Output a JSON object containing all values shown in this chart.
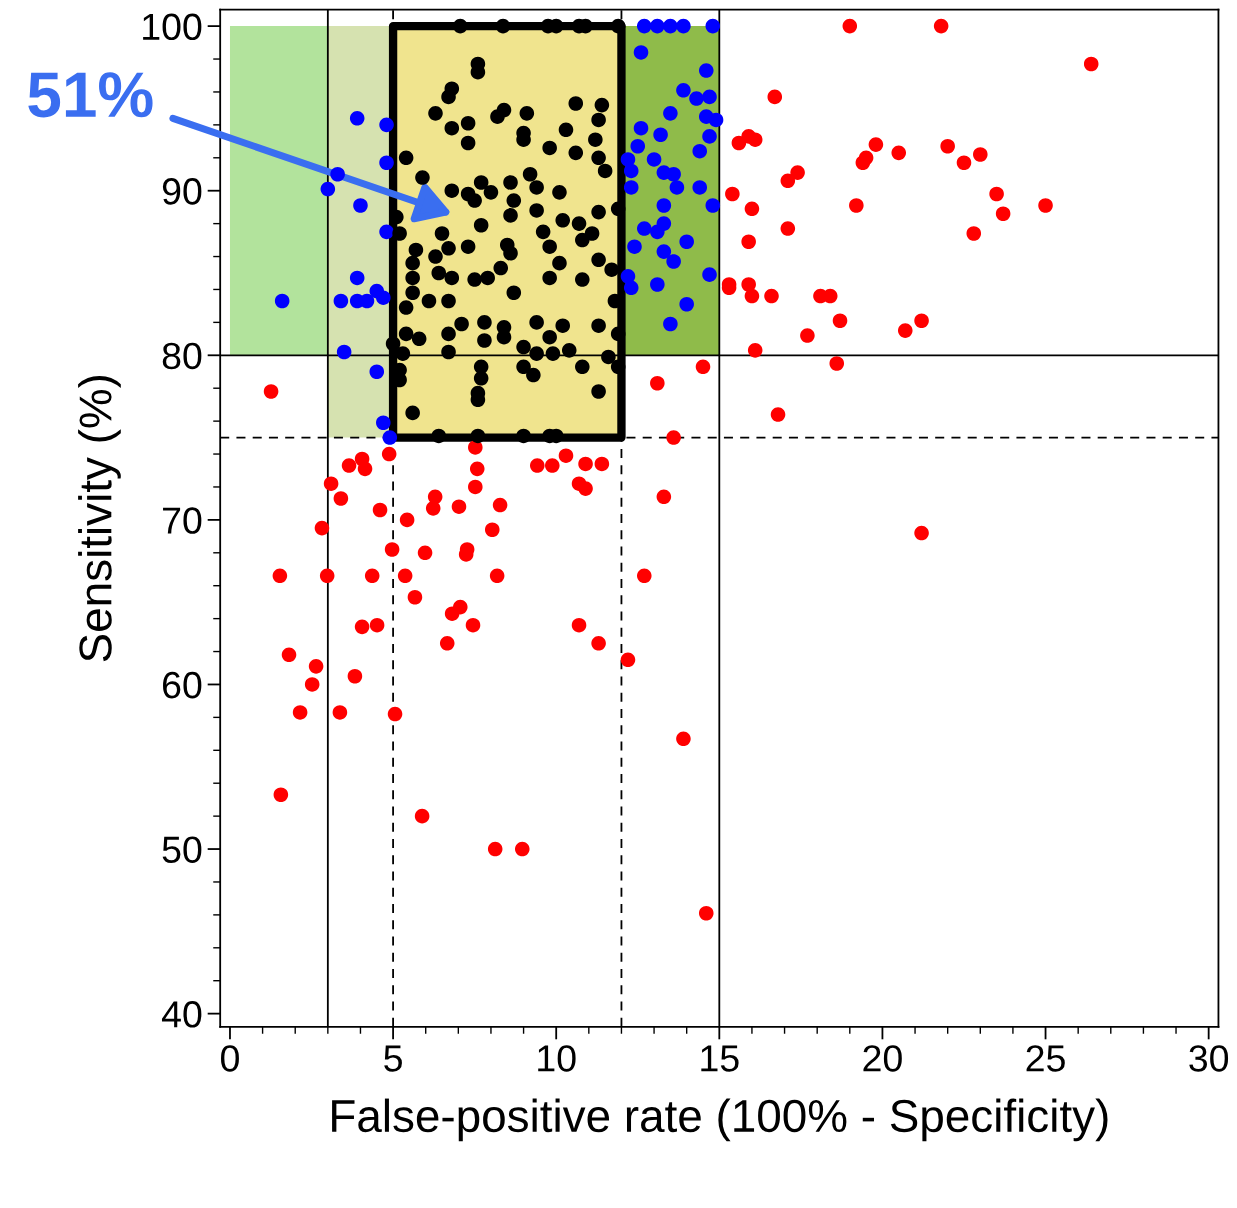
{
  "chart_data": {
    "type": "scatter",
    "xlabel": "False-positive rate (100% - Specificity)",
    "ylabel": "Sensitivity (%)",
    "xlim": [
      -0.3,
      30.3
    ],
    "ylim": [
      39.2,
      101
    ],
    "xticks": [
      0,
      5,
      10,
      15,
      20,
      25,
      30
    ],
    "yticks": [
      40,
      50,
      60,
      70,
      80,
      90,
      100
    ],
    "grid": false,
    "legend": false,
    "ref_lines": [
      {
        "axis": "x",
        "value": 3,
        "line_style": "solid",
        "color": "#000000"
      },
      {
        "axis": "x",
        "value": 15,
        "line_style": "solid",
        "color": "#000000"
      },
      {
        "axis": "x",
        "value": 5,
        "line_style": "dashed",
        "color": "#000000"
      },
      {
        "axis": "x",
        "value": 12,
        "line_style": "dashed",
        "color": "#000000"
      },
      {
        "axis": "y",
        "value": 80,
        "line_style": "solid",
        "color": "#000000"
      },
      {
        "axis": "y",
        "value": 75,
        "line_style": "dashed",
        "color": "#000000"
      }
    ],
    "annotations": [
      "51%"
    ],
    "series": [
      {
        "type": "area",
        "color": "#b2e39c",
        "x": [
          0,
          3
        ],
        "values": [
          null,
          null
        ],
        "lower": [
          80,
          80
        ],
        "upper": [
          100,
          100
        ]
      },
      {
        "type": "area",
        "color": "#d6e2b0",
        "x": [
          3,
          5
        ],
        "values": [
          null,
          null
        ],
        "lower": [
          75,
          75
        ],
        "upper": [
          100,
          100
        ]
      },
      {
        "type": "area",
        "color": "#f0e48e",
        "line_style": "solid",
        "x": [
          5,
          12
        ],
        "values": [
          null,
          null
        ],
        "lower": [
          75,
          75
        ],
        "upper": [
          100,
          100
        ]
      },
      {
        "type": "area",
        "color": "#8fbb4a",
        "x": [
          12,
          15
        ],
        "values": [
          null,
          null
        ],
        "lower": [
          80,
          80
        ],
        "upper": [
          100,
          100
        ]
      },
      {
        "color": "#ff0000",
        "marker": "circle",
        "x": [
          1.26,
          1.53,
          1.81,
          1.56,
          2.15,
          2.52,
          2.64,
          2.82,
          2.98,
          3.1,
          3.37,
          3.4,
          3.65,
          3.83,
          4.05,
          4.05,
          4.14,
          4.36,
          4.51,
          4.6,
          4.88,
          4.97,
          5.06,
          5.37,
          5.43,
          5.67,
          5.89,
          5.98,
          6.23,
          6.29,
          6.66,
          6.81,
          7.06,
          7.02,
          7.24,
          7.27,
          7.45,
          7.52,
          7.58,
          7.52,
          8.04,
          8.13,
          8.19,
          8.28,
          8.96,
          9.42,
          9.88,
          10.3,
          10.7,
          10.7,
          10.9,
          10.9,
          11.3,
          11.4,
          12.2,
          12.7,
          13.1,
          13.3,
          13.6,
          13.9,
          14.6,
          14.5,
          19.0,
          21.8,
          26.4,
          16.7,
          15.9,
          15.6,
          16.1,
          19.8,
          19.5,
          19.4,
          20.5,
          22.0,
          22.5,
          23.0,
          17.4,
          17.1,
          15.4,
          19.2,
          23.5,
          23.7,
          25.0,
          16.0,
          17.1,
          22.8,
          15.9,
          15.3,
          15.3,
          15.9,
          16.0,
          16.6,
          18.1,
          18.4,
          18.7,
          17.7,
          20.7,
          21.2,
          16.1,
          18.6,
          16.8,
          21.2
        ],
        "values": [
          77.8,
          66.6,
          61.8,
          53.3,
          58.3,
          60.0,
          61.1,
          69.5,
          66.6,
          72.2,
          58.3,
          71.3,
          73.3,
          60.5,
          63.5,
          73.7,
          73.1,
          66.6,
          63.6,
          70.6,
          74.0,
          68.2,
          58.2,
          66.6,
          70.0,
          65.3,
          52.0,
          68.0,
          70.7,
          71.4,
          62.5,
          64.3,
          64.7,
          70.8,
          67.9,
          68.2,
          63.6,
          72.0,
          73.1,
          74.4,
          69.4,
          50.0,
          66.6,
          70.9,
          50.0,
          73.3,
          73.3,
          73.9,
          72.2,
          63.6,
          71.9,
          73.4,
          62.5,
          73.4,
          61.5,
          66.6,
          78.3,
          71.4,
          75.0,
          56.7,
          46.1,
          79.3,
          100,
          100,
          97.7,
          95.7,
          93.3,
          92.9,
          93.1,
          92.8,
          92.0,
          91.7,
          92.3,
          92.7,
          91.7,
          92.2,
          91.1,
          90.6,
          89.8,
          89.1,
          89.8,
          88.6,
          89.1,
          88.9,
          87.7,
          87.4,
          86.9,
          84.3,
          84.1,
          84.3,
          83.6,
          83.6,
          83.6,
          83.6,
          82.1,
          81.2,
          81.5,
          82.1,
          80.3,
          79.5,
          76.4,
          69.2
        ]
      },
      {
        "color": "#0000ff",
        "marker": "circle",
        "x": [
          3.9,
          4.8,
          4.8,
          3.3,
          3.0,
          4.0,
          4.8,
          1.6,
          3.4,
          3.9,
          4.2,
          4.5,
          4.7,
          3.9,
          3.5,
          4.5,
          4.7,
          4.9,
          12.7,
          13.1,
          13.5,
          13.9,
          14.8,
          12.6,
          14.6,
          13.9,
          14.3,
          14.7,
          13.5,
          14.6,
          14.9,
          12.6,
          13.2,
          14.7,
          12.5,
          14.4,
          12.2,
          13.0,
          12.3,
          13.3,
          13.6,
          12.3,
          13.7,
          14.4,
          13.3,
          14.8,
          12.7,
          13.1,
          13.3,
          14.0,
          12.4,
          13.3,
          13.6,
          12.2,
          14.7,
          12.3,
          13.1,
          14.0,
          13.5
        ],
        "values": [
          94.4,
          94.0,
          91.7,
          91.0,
          90.1,
          89.1,
          87.5,
          83.3,
          83.3,
          83.3,
          83.3,
          83.9,
          83.5,
          84.7,
          80.2,
          79.0,
          75.9,
          75.0,
          100,
          100,
          100,
          100,
          100,
          98.4,
          97.3,
          96.1,
          95.6,
          95.7,
          94.7,
          94.5,
          94.3,
          93.8,
          93.4,
          93.3,
          92.7,
          92.4,
          91.9,
          91.9,
          91.2,
          91.1,
          91.0,
          90.2,
          90.2,
          90.2,
          89.1,
          89.1,
          87.7,
          87.5,
          88.0,
          86.9,
          86.6,
          86.3,
          85.7,
          84.8,
          84.9,
          84.1,
          84.3,
          83.1,
          81.9
        ]
      },
      {
        "color": "#000000",
        "marker": "circle",
        "x": [
          7.06,
          8.37,
          9.75,
          10.0,
          10.7,
          10.9,
          11.9,
          7.6,
          7.6,
          6.8,
          6.7,
          6.3,
          7.3,
          6.8,
          7.3,
          8.4,
          8.2,
          9.1,
          9.0,
          9.0,
          10.6,
          11.4,
          11.3,
          10.3,
          9.8,
          10.6,
          11.2,
          11.3,
          11.5,
          5.4,
          5.9,
          6.8,
          7.3,
          7.7,
          8.0,
          7.5,
          8.6,
          9.2,
          9.4,
          10.1,
          8.7,
          8.6,
          9.4,
          11.3,
          11.9,
          5.1,
          7.7,
          10.2,
          10.7,
          5.2,
          6.5,
          9.6,
          11.1,
          10.8,
          7.3,
          6.7,
          8.5,
          9.8,
          5.7,
          5.6,
          6.3,
          8.6,
          11.3,
          6.4,
          6.8,
          7.5,
          7.9,
          8.3,
          9.8,
          10.8,
          10.1,
          11.7,
          5.6,
          5.6,
          6.1,
          6.7,
          8.7,
          11.8,
          5.4,
          5.4,
          5.8,
          6.7,
          7.1,
          7.8,
          7.8,
          8.4,
          8.4,
          9.4,
          10.2,
          9.8,
          11.3,
          11.9,
          9.0,
          9.4,
          9.9,
          10.4,
          5.0,
          5.3,
          6.7,
          11.6,
          9.0,
          9.3,
          10.8,
          5.2,
          5.2,
          7.7,
          7.7,
          7.6,
          7.6,
          11.9,
          11.3,
          5.6,
          6.4,
          7.6,
          9.0,
          9.8,
          10.0
        ],
        "values": [
          100,
          100,
          100,
          100,
          100,
          100,
          100,
          97.7,
          97.2,
          96.2,
          95.7,
          94.7,
          94.1,
          93.8,
          92.9,
          94.9,
          94.5,
          94.7,
          93.5,
          93.1,
          95.3,
          95.2,
          94.3,
          93.7,
          92.6,
          92.3,
          93.1,
          92.0,
          91.2,
          92.0,
          90.8,
          90.0,
          89.8,
          90.5,
          89.9,
          89.4,
          90.5,
          91.0,
          90.2,
          89.9,
          89.4,
          88.5,
          88.8,
          88.7,
          88.9,
          88.4,
          87.9,
          88.2,
          88.0,
          87.4,
          87.4,
          87.5,
          87.4,
          87.0,
          86.6,
          86.5,
          86.7,
          86.6,
          86.4,
          85.6,
          86.0,
          86.2,
          85.8,
          85.0,
          84.7,
          84.6,
          84.7,
          85.3,
          84.7,
          84.6,
          85.6,
          85.2,
          84.7,
          83.8,
          83.3,
          83.3,
          83.8,
          83.3,
          82.9,
          81.3,
          81.0,
          81.3,
          81.9,
          82.0,
          80.9,
          81.7,
          81.1,
          82.0,
          81.8,
          81.1,
          81.8,
          81.3,
          80.5,
          80.1,
          80.1,
          80.3,
          80.7,
          80.1,
          80.2,
          79.9,
          79.3,
          78.8,
          79.3,
          79.1,
          78.5,
          79.3,
          78.6,
          77.7,
          77.3,
          79.3,
          77.8,
          76.5,
          75.1,
          75.1,
          75.1,
          75.1,
          75.1
        ]
      }
    ]
  }
}
